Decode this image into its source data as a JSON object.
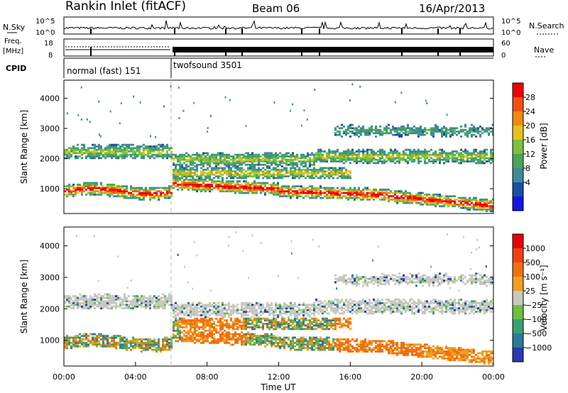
{
  "header": {
    "station": "Rankin Inlet (fitACF)",
    "beam": "Beam 06",
    "date": "16/Apr/2013"
  },
  "aux_panels": {
    "nsky_label": "N.Sky",
    "nsky_ticks": [
      "10^5",
      "10^0"
    ],
    "nsearch_label": "N.Search",
    "nsearch_ticks": [
      "10^5",
      "10^0"
    ],
    "freq_label_1": "Freq.",
    "freq_label_2": "[MHz]",
    "freq_ticks": [
      "18",
      "8"
    ],
    "nave_label": "Nave",
    "nave_ticks": [
      "60",
      "0"
    ],
    "cpid_label": "CPID",
    "cpid_modes": [
      {
        "name": "normal (fast) 151",
        "start_hour": 0,
        "end_hour": 6.0
      },
      {
        "name": "twofsound 3501",
        "start_hour": 6.0,
        "end_hour": 24
      }
    ]
  },
  "chart_data": [
    {
      "type": "heatmap",
      "panel": "power",
      "ylabel": "Slant Range [km]",
      "xlabel": "",
      "xlim_hours": [
        0,
        24
      ],
      "ylim": [
        180,
        4600
      ],
      "y_ticks": [
        1000,
        2000,
        3000,
        4000
      ],
      "colorbar_label": "Power [dB]",
      "colorbar_ticks": [
        "28",
        "24",
        "20",
        "16",
        "12",
        "8",
        "4"
      ],
      "colorbar_range": [
        0,
        32
      ],
      "colors": [
        "#1515e8",
        "#1a4fa0",
        "#3d8a9a",
        "#4aa55a",
        "#7dc23a",
        "#e8c020",
        "#f08a10",
        "#f25010",
        "#ee0000"
      ],
      "mode_change_hour": 6.0
    },
    {
      "type": "heatmap",
      "panel": "velocity",
      "ylabel": "Slant Range [km]",
      "xlabel": "Time UT",
      "xlim_hours": [
        0,
        24
      ],
      "ylim": [
        180,
        4600
      ],
      "y_ticks": [
        1000,
        2000,
        3000,
        4000
      ],
      "x_ticks": [
        "00:00",
        "04:00",
        "08:00",
        "12:00",
        "16:00",
        "20:00",
        "00:00"
      ],
      "colorbar_label": "Velocity [m s⁻¹]",
      "colorbar_ticks": [
        "1000",
        "500",
        "100",
        "25",
        "−25",
        "−100",
        "−500",
        "−1000"
      ],
      "colors": [
        "#2a3ab0",
        "#2c7a9a",
        "#3aa070",
        "#6cc040",
        "#c8c8c0",
        "#f0a020",
        "#f07010",
        "#f04010",
        "#e80000"
      ],
      "mode_change_hour": 6.0
    }
  ]
}
